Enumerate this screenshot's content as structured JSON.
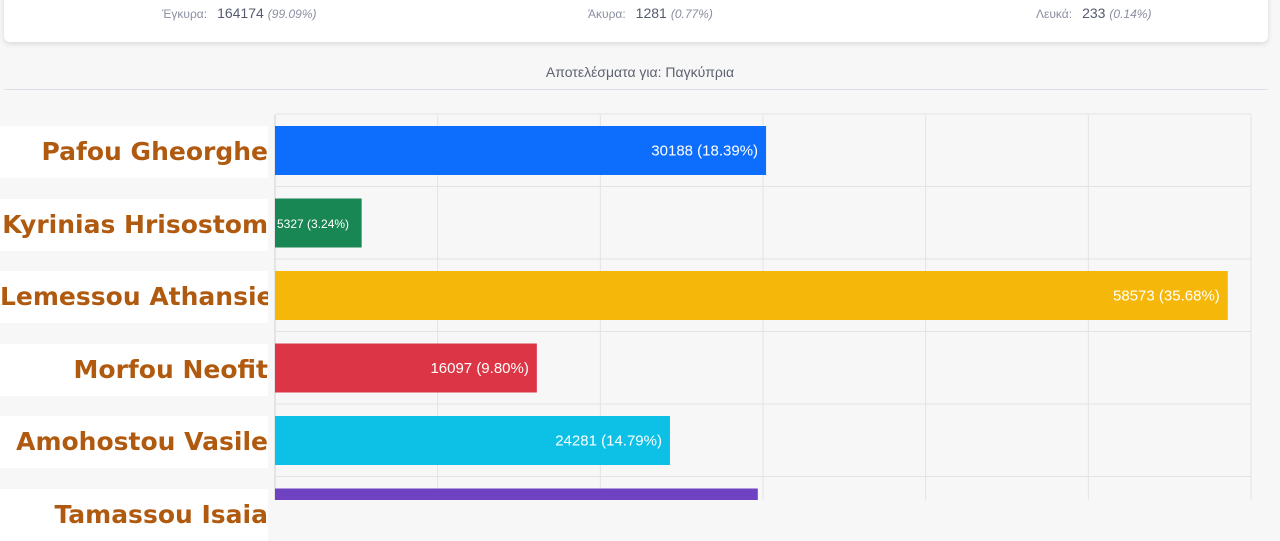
{
  "stats": {
    "valid": {
      "label": "Έγκυρα:",
      "value": "164174",
      "percent": "(99.09%)"
    },
    "invalid": {
      "label": "Άκυρα:",
      "value": "1281",
      "percent": "(0.77%)"
    },
    "blank": {
      "label": "Λευκά:",
      "value": "233",
      "percent": "(0.14%)"
    }
  },
  "results_title": "Αποτελέσματα για: Παγκύπρια",
  "chart_data": {
    "type": "bar",
    "orientation": "horizontal",
    "categories": [
      "Pafou Gheorghe",
      "Kyrinias Hrisostom",
      "Lemessou Athansie",
      "Morfou Neofit",
      "Amohostou Vasile",
      "Tamassou Isaia"
    ],
    "values": [
      30188,
      5327,
      58573,
      16097,
      24281,
      29680
    ],
    "data_labels": [
      "30188 (18.39%)",
      "5327 (3.24%)",
      "58573 (35.68%)",
      "16097 (9.80%)",
      "24281 (14.79%)",
      ""
    ],
    "colors": [
      "#0d6efd",
      "#198754",
      "#f5b80a",
      "#dc3545",
      "#0dc0e6",
      "#6f42c1"
    ],
    "xlim": [
      0,
      60000
    ],
    "grid": true
  }
}
